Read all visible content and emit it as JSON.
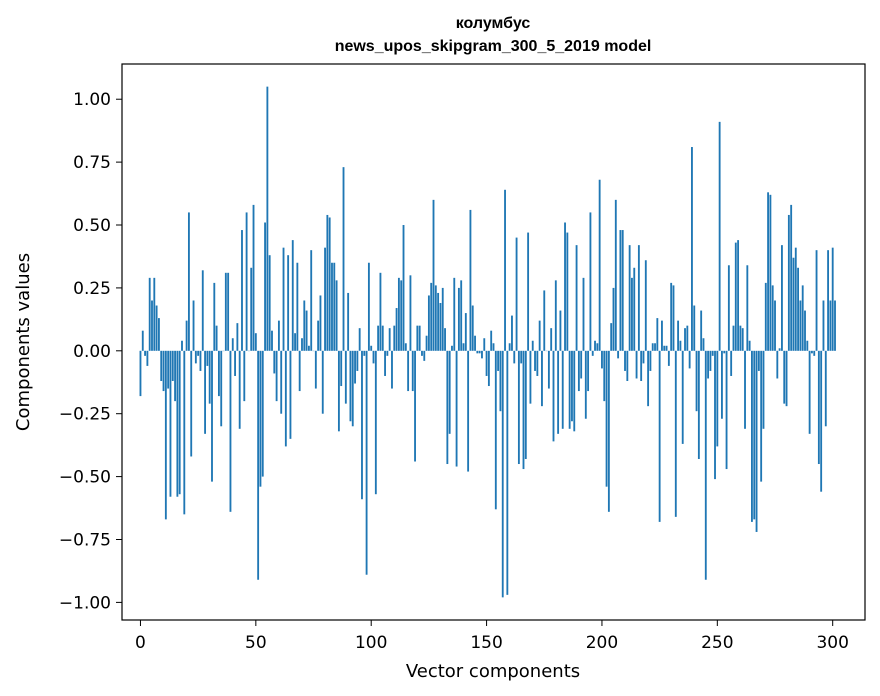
{
  "chart_data": {
    "type": "bar",
    "title": "колумбус",
    "subtitle": "news_upos_skipgram_300_5_2019 model",
    "xlabel": "Vector components",
    "ylabel": "Components values",
    "xlim": [
      -8,
      314
    ],
    "ylim": [
      -1.07,
      1.14
    ],
    "xticks": [
      0,
      50,
      100,
      150,
      200,
      250,
      300
    ],
    "yticks": [
      -1.0,
      -0.75,
      -0.5,
      -0.25,
      0.0,
      0.25,
      0.5,
      0.75,
      1.0
    ],
    "ytick_labels": [
      "−1.00",
      "−0.75",
      "−0.50",
      "−0.25",
      "0.00",
      "0.25",
      "0.50",
      "0.75",
      "1.00"
    ],
    "bar_color": "#1f77b4",
    "grid": false,
    "values": [
      -0.18,
      0.08,
      -0.02,
      -0.06,
      0.29,
      0.2,
      0.29,
      0.18,
      0.13,
      -0.12,
      -0.16,
      -0.67,
      -0.15,
      -0.58,
      -0.12,
      -0.2,
      -0.58,
      -0.57,
      0.04,
      -0.65,
      0.12,
      0.55,
      -0.42,
      0.2,
      -0.05,
      -0.02,
      -0.08,
      0.32,
      -0.33,
      -0.06,
      -0.21,
      -0.52,
      0.27,
      0.1,
      -0.18,
      -0.3,
      0.0,
      0.31,
      0.31,
      -0.64,
      0.05,
      -0.1,
      0.11,
      -0.31,
      0.48,
      -0.2,
      0.55,
      0.0,
      0.33,
      0.58,
      0.07,
      -0.91,
      -0.54,
      -0.5,
      0.51,
      1.05,
      0.38,
      0.08,
      -0.09,
      -0.2,
      0.12,
      -0.25,
      0.41,
      -0.38,
      0.38,
      -0.35,
      0.44,
      0.07,
      0.35,
      -0.16,
      0.05,
      0.2,
      0.16,
      0.02,
      0.4,
      0.0,
      -0.15,
      0.12,
      0.22,
      -0.25,
      0.41,
      0.54,
      0.53,
      0.35,
      0.35,
      0.28,
      -0.32,
      -0.14,
      0.73,
      -0.21,
      0.23,
      -0.28,
      -0.3,
      -0.13,
      -0.08,
      0.09,
      -0.59,
      -0.02,
      -0.89,
      0.35,
      0.02,
      -0.05,
      -0.57,
      0.1,
      0.31,
      0.1,
      -0.1,
      -0.02,
      0.09,
      -0.15,
      0.1,
      0.17,
      0.29,
      0.28,
      0.5,
      0.03,
      -0.16,
      0.3,
      -0.16,
      -0.44,
      0.1,
      0.1,
      -0.02,
      -0.04,
      0.06,
      0.22,
      0.27,
      0.6,
      0.26,
      0.23,
      0.19,
      0.25,
      0.09,
      -0.45,
      -0.33,
      0.02,
      0.29,
      -0.46,
      0.25,
      0.28,
      0.03,
      0.15,
      -0.48,
      0.56,
      0.18,
      0.06,
      -0.01,
      -0.01,
      -0.03,
      0.05,
      -0.1,
      -0.14,
      0.08,
      0.03,
      -0.63,
      -0.08,
      -0.24,
      -0.98,
      0.64,
      -0.97,
      0.03,
      0.14,
      -0.05,
      0.45,
      -0.45,
      -0.05,
      -0.47,
      -0.43,
      0.47,
      -0.21,
      0.04,
      -0.08,
      -0.1,
      0.12,
      -0.22,
      0.24,
      0.0,
      -0.15,
      0.09,
      -0.36,
      0.28,
      -0.33,
      0.16,
      -0.31,
      0.51,
      0.47,
      -0.31,
      -0.28,
      -0.32,
      0.42,
      -0.16,
      -0.11,
      0.29,
      -0.27,
      -0.16,
      0.55,
      -0.02,
      0.04,
      0.03,
      0.68,
      -0.07,
      -0.2,
      -0.54,
      -0.64,
      0.11,
      0.25,
      0.6,
      -0.03,
      0.48,
      0.48,
      -0.08,
      -0.12,
      0.42,
      0.29,
      0.33,
      -0.11,
      0.42,
      -0.12,
      -0.05,
      0.36,
      -0.22,
      -0.08,
      0.03,
      0.03,
      0.13,
      -0.68,
      0.12,
      0.02,
      0.02,
      -0.06,
      0.27,
      0.26,
      -0.66,
      0.12,
      0.04,
      -0.37,
      0.09,
      0.1,
      -0.07,
      0.81,
      0.18,
      -0.24,
      -0.43,
      0.16,
      0.05,
      -0.91,
      -0.11,
      -0.08,
      -0.02,
      -0.51,
      -0.38,
      0.91,
      -0.27,
      -0.01,
      -0.47,
      0.34,
      -0.1,
      0.1,
      0.43,
      0.44,
      0.1,
      0.09,
      -0.31,
      0.34,
      0.04,
      -0.68,
      -0.67,
      -0.72,
      -0.08,
      -0.52,
      -0.31,
      0.27,
      0.63,
      0.62,
      0.26,
      0.2,
      -0.11,
      0.01,
      0.42,
      -0.21,
      -0.22,
      0.54,
      0.58,
      0.37,
      0.41,
      0.33,
      0.2,
      0.26,
      0.16,
      0.04,
      -0.33,
      -0.01,
      -0.02,
      0.4,
      -0.45,
      -0.56,
      0.2,
      -0.3,
      0.4,
      0.2,
      0.41,
      0.2
    ]
  }
}
